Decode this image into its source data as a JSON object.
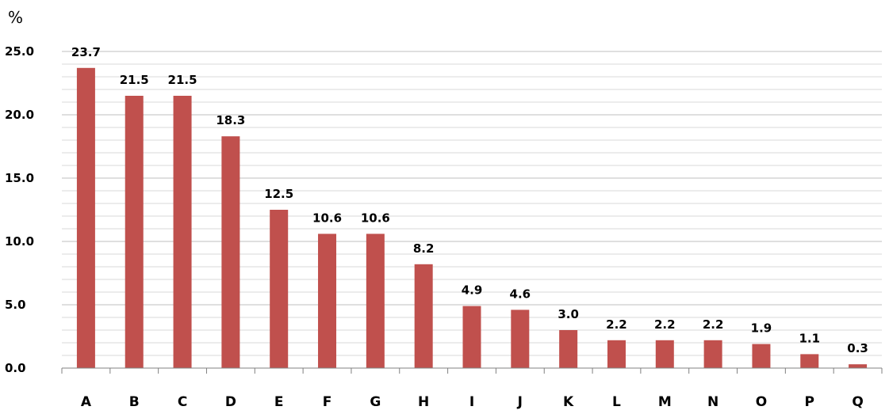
{
  "chart_data": {
    "type": "bar",
    "unit_label": "%",
    "categories": [
      "A",
      "B",
      "C",
      "D",
      "E",
      "F",
      "G",
      "H",
      "I",
      "J",
      "K",
      "L",
      "M",
      "N",
      "O",
      "P",
      "Q"
    ],
    "values": [
      23.7,
      21.5,
      21.5,
      18.3,
      12.5,
      10.6,
      10.6,
      8.2,
      4.9,
      4.6,
      3.0,
      2.2,
      2.2,
      2.2,
      1.9,
      1.1,
      0.3
    ],
    "value_labels": [
      "23.7",
      "21.5",
      "21.5",
      "18.3",
      "12.5",
      "10.6",
      "10.6",
      "8.2",
      "4.9",
      "4.6",
      "3.0",
      "2.2",
      "2.2",
      "2.2",
      "1.9",
      "1.1",
      "0.3"
    ],
    "yticks": [
      "0.0",
      "5.0",
      "10.0",
      "15.0",
      "20.0",
      "25.0"
    ],
    "ylim": [
      0,
      25
    ],
    "grid": true,
    "bar_color": "#c0504d",
    "grid_color": "#d9d9d9",
    "axis_color": "#808080"
  }
}
